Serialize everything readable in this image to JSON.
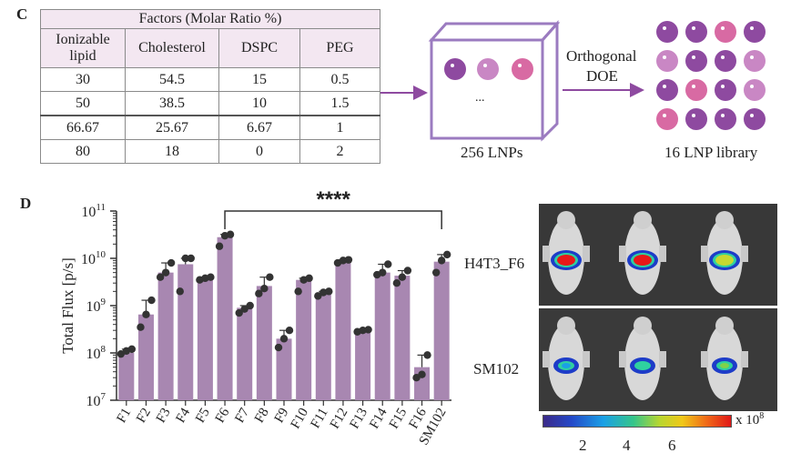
{
  "panel_c": {
    "letter": "C",
    "table": {
      "group_header": "Factors (Molar Ratio %)",
      "columns": [
        "Ionizable lipid",
        "Cholesterol",
        "DSPC",
        "PEG"
      ],
      "rows": [
        [
          "30",
          "54.5",
          "15",
          "0.5"
        ],
        [
          "50",
          "38.5",
          "10",
          "1.5"
        ],
        [
          "66.67",
          "25.67",
          "6.67",
          "1"
        ],
        [
          "80",
          "18",
          "0",
          "2"
        ]
      ]
    },
    "cube_label": "256 LNPs",
    "cube_dots": "...",
    "arrow_label_1": "Orthogonal",
    "arrow_label_2": "DOE",
    "library_label": "16 LNP library",
    "colors": {
      "dark_purple": "#8e4aa0",
      "light_purple": "#c987c4",
      "pink": "#d86aa3",
      "border": "#9b7bc0"
    }
  },
  "panel_d": {
    "letter": "D",
    "significance": "****",
    "image_labels": [
      "H4T3_F6",
      "SM102"
    ],
    "colorbar": {
      "ticks": [
        "2",
        "4",
        "6"
      ],
      "unit_label": "x 10",
      "unit_exp": "8"
    }
  },
  "chart_data": {
    "type": "bar",
    "ylabel": "Total Flux [p/s]",
    "yscale": "log",
    "ylim": [
      10000000.0,
      100000000000.0
    ],
    "yticks": [
      {
        "base": "10",
        "exp": "7"
      },
      {
        "base": "10",
        "exp": "8"
      },
      {
        "base": "10",
        "exp": "9"
      },
      {
        "base": "10",
        "exp": "10"
      },
      {
        "base": "10",
        "exp": "11"
      }
    ],
    "categories": [
      "F1",
      "F2",
      "F3",
      "F4",
      "F5",
      "F6",
      "F7",
      "F8",
      "F9",
      "F10",
      "F11",
      "F12",
      "F13",
      "F14",
      "F15",
      "F16",
      "SM102"
    ],
    "values": [
      100000000.0,
      650000000.0,
      5000000000.0,
      7500000000.0,
      4000000000.0,
      28000000000.0,
      900000000.0,
      2600000000.0,
      200000000.0,
      3500000000.0,
      1800000000.0,
      9000000000.0,
      300000000.0,
      5000000000.0,
      4300000000.0,
      50000000.0,
      8500000000.0
    ],
    "points": [
      [
        95000000.0,
        110000000.0,
        120000000.0
      ],
      [
        350000000.0,
        650000000.0,
        1300000000.0
      ],
      [
        4000000000.0,
        5000000000.0,
        8000000000.0
      ],
      [
        2000000000.0,
        10000000000.0,
        10000000000.0
      ],
      [
        3500000000.0,
        3800000000.0,
        4000000000.0
      ],
      [
        18000000000.0,
        30000000000.0,
        32000000000.0
      ],
      [
        700000000.0,
        850000000.0,
        1000000000.0
      ],
      [
        1800000000.0,
        2300000000.0,
        4000000000.0
      ],
      [
        130000000.0,
        200000000.0,
        300000000.0
      ],
      [
        2000000000.0,
        3500000000.0,
        3800000000.0
      ],
      [
        1600000000.0,
        1900000000.0,
        2000000000.0
      ],
      [
        8000000000.0,
        9000000000.0,
        9300000000.0
      ],
      [
        280000000.0,
        300000000.0,
        310000000.0
      ],
      [
        4500000000.0,
        5000000000.0,
        7500000000.0
      ],
      [
        3000000000.0,
        4000000000.0,
        5500000000.0
      ],
      [
        30000000.0,
        35000000.0,
        90000000.0
      ],
      [
        5000000000.0,
        9000000000.0,
        12000000000.0
      ]
    ],
    "bar_color": "#a887b1"
  }
}
